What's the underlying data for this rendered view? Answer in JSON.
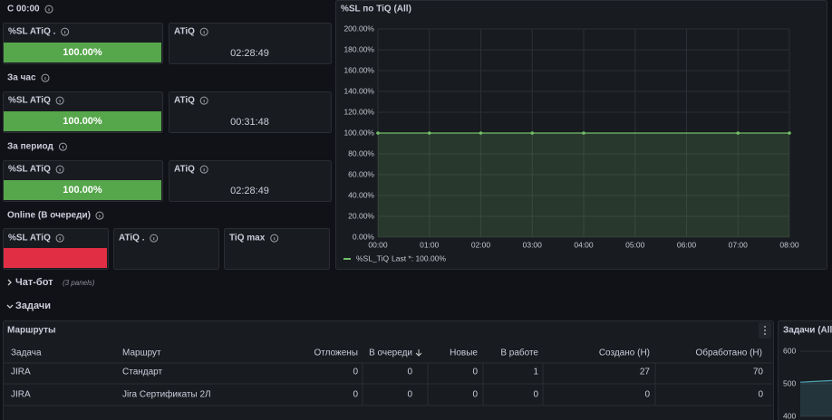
{
  "sections": [
    {
      "title": "С 00:00",
      "panels": [
        {
          "title": "%SL ATiQ .",
          "value": "100.00%"
        },
        {
          "title": "ATiQ",
          "value": "02:28:49"
        }
      ]
    },
    {
      "title": "За час",
      "panels": [
        {
          "title": "%SL ATiQ",
          "value": "100.00%"
        },
        {
          "title": "ATiQ",
          "value": "00:31:48"
        }
      ]
    },
    {
      "title": "За период",
      "panels": [
        {
          "title": "%SL ATiQ",
          "value": "100.00%"
        },
        {
          "title": "ATiQ",
          "value": "02:28:49"
        }
      ]
    }
  ],
  "online": {
    "title": "Online (В очереди)",
    "panels": [
      {
        "title": "%SL ATiQ"
      },
      {
        "title": "ATiQ ."
      },
      {
        "title": "TiQ max"
      }
    ]
  },
  "rows": [
    {
      "title": "Чат-бот",
      "note": "(3 panels)"
    },
    {
      "title": "Задачи"
    }
  ],
  "table": {
    "title": "Маршруты",
    "columns": [
      "Задача",
      "Маршрут",
      "Отложены",
      "В очереди",
      "Новые",
      "В работе",
      "Создано (Н)",
      "Обработано (Н)"
    ],
    "rows": [
      [
        "JIRA",
        "Стандарт",
        0,
        0,
        0,
        1,
        27,
        70
      ],
      [
        "JIRA",
        "Jira Сертификаты 2Л",
        0,
        0,
        0,
        0,
        0,
        0
      ]
    ]
  },
  "chart_data": [
    {
      "type": "line",
      "title": "%SL по TiQ (All)",
      "x": [
        "00:00",
        "01:00",
        "02:00",
        "03:00",
        "04:00",
        "07:00",
        "08:00"
      ],
      "xlim": [
        "00:00",
        "08:00"
      ],
      "xticks": [
        "00:00",
        "01:00",
        "02:00",
        "03:00",
        "04:00",
        "05:00",
        "06:00",
        "07:00",
        "08:00"
      ],
      "series": [
        {
          "name": "%SL_TiQ",
          "color": "#73bf69",
          "values": [
            100,
            100,
            100,
            100,
            100,
            100,
            100
          ],
          "legend_value": "Last *: 100.00%"
        }
      ],
      "ylim": [
        0,
        200
      ],
      "yticks": [
        {
          "value": 0,
          "label": "0.00%"
        },
        {
          "value": 20,
          "label": "20.00%"
        },
        {
          "value": 40,
          "label": "40.00%"
        },
        {
          "value": 60,
          "label": "60.00%"
        },
        {
          "value": 80,
          "label": "80.00%"
        },
        {
          "value": 100,
          "label": "100.00%"
        },
        {
          "value": 120,
          "label": "120.00%"
        },
        {
          "value": 140,
          "label": "140.00%"
        },
        {
          "value": 160,
          "label": "160.00%"
        },
        {
          "value": 180,
          "label": "180.00%"
        },
        {
          "value": 200,
          "label": "200.00%"
        }
      ],
      "grid": true
    },
    {
      "type": "line",
      "title": "Задачи (All)",
      "series": [
        {
          "color": "#4f9fb0",
          "values": [
            505,
            510
          ]
        }
      ],
      "ylim": [
        400,
        600
      ],
      "yticks": [
        400,
        500,
        600
      ]
    }
  ]
}
